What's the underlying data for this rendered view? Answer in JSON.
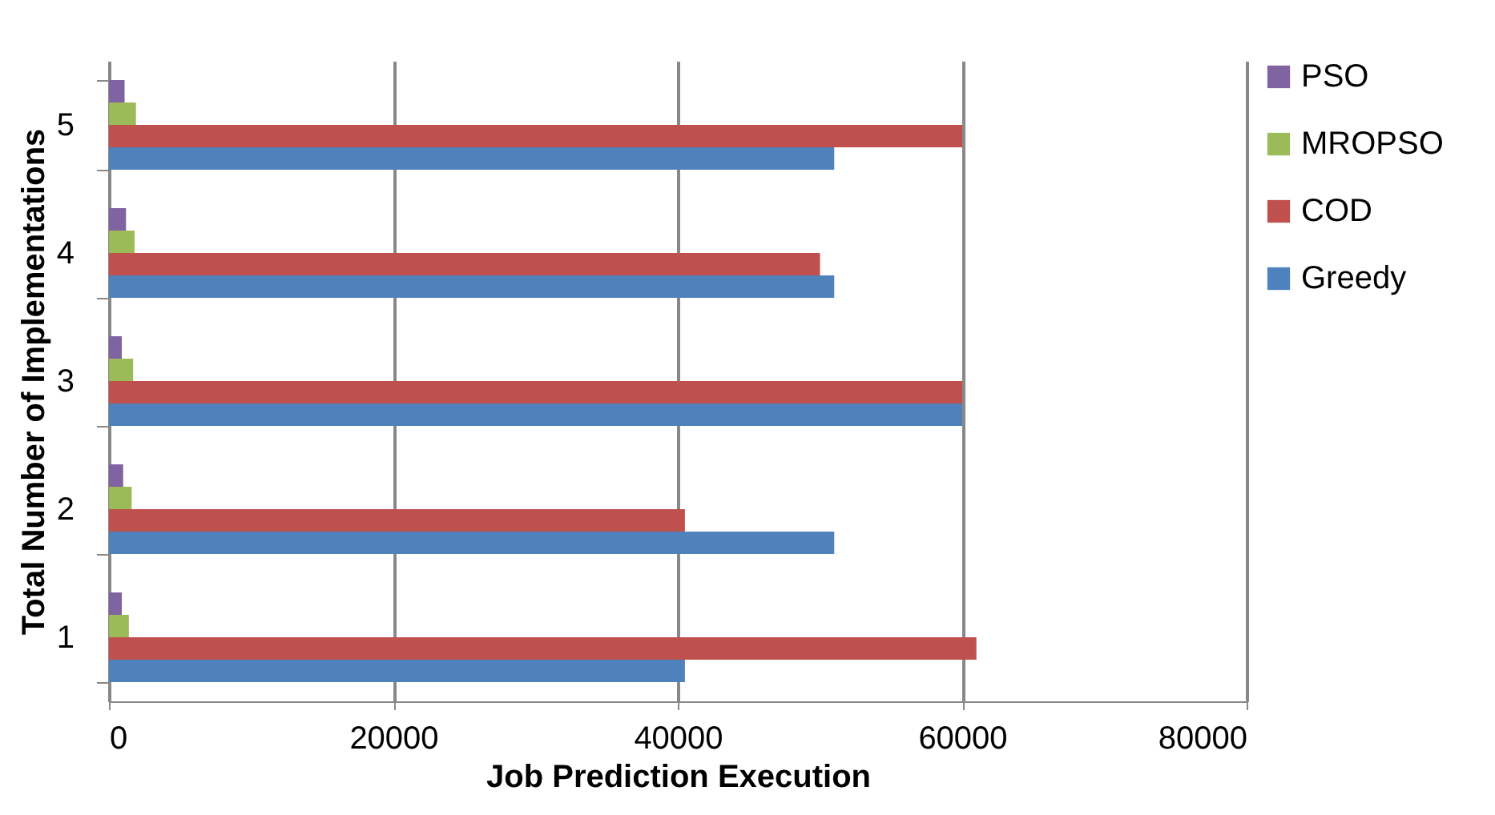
{
  "chart_data": {
    "type": "bar",
    "orientation": "horizontal",
    "xlabel": "Job  Prediction Execution",
    "ylabel": "Total Number of Implementations",
    "categories": [
      "5",
      "4",
      "3",
      "2",
      "1"
    ],
    "series": [
      {
        "name": "PSO",
        "color": "#8064a2",
        "values": [
          1100,
          1200,
          900,
          1000,
          900
        ]
      },
      {
        "name": "MROPSO",
        "color": "#9bbb59",
        "values": [
          1900,
          1800,
          1700,
          1600,
          1400
        ]
      },
      {
        "name": "COD",
        "color": "#c0504d",
        "values": [
          60000,
          50000,
          60000,
          40500,
          61000
        ]
      },
      {
        "name": "Greedy",
        "color": "#4f81bd",
        "values": [
          51000,
          51000,
          60000,
          51000,
          40500
        ]
      }
    ],
    "xlim": [
      0,
      80000
    ],
    "xticks": [
      0,
      20000,
      40000,
      60000,
      80000
    ],
    "grid": "x",
    "legend": "right"
  }
}
